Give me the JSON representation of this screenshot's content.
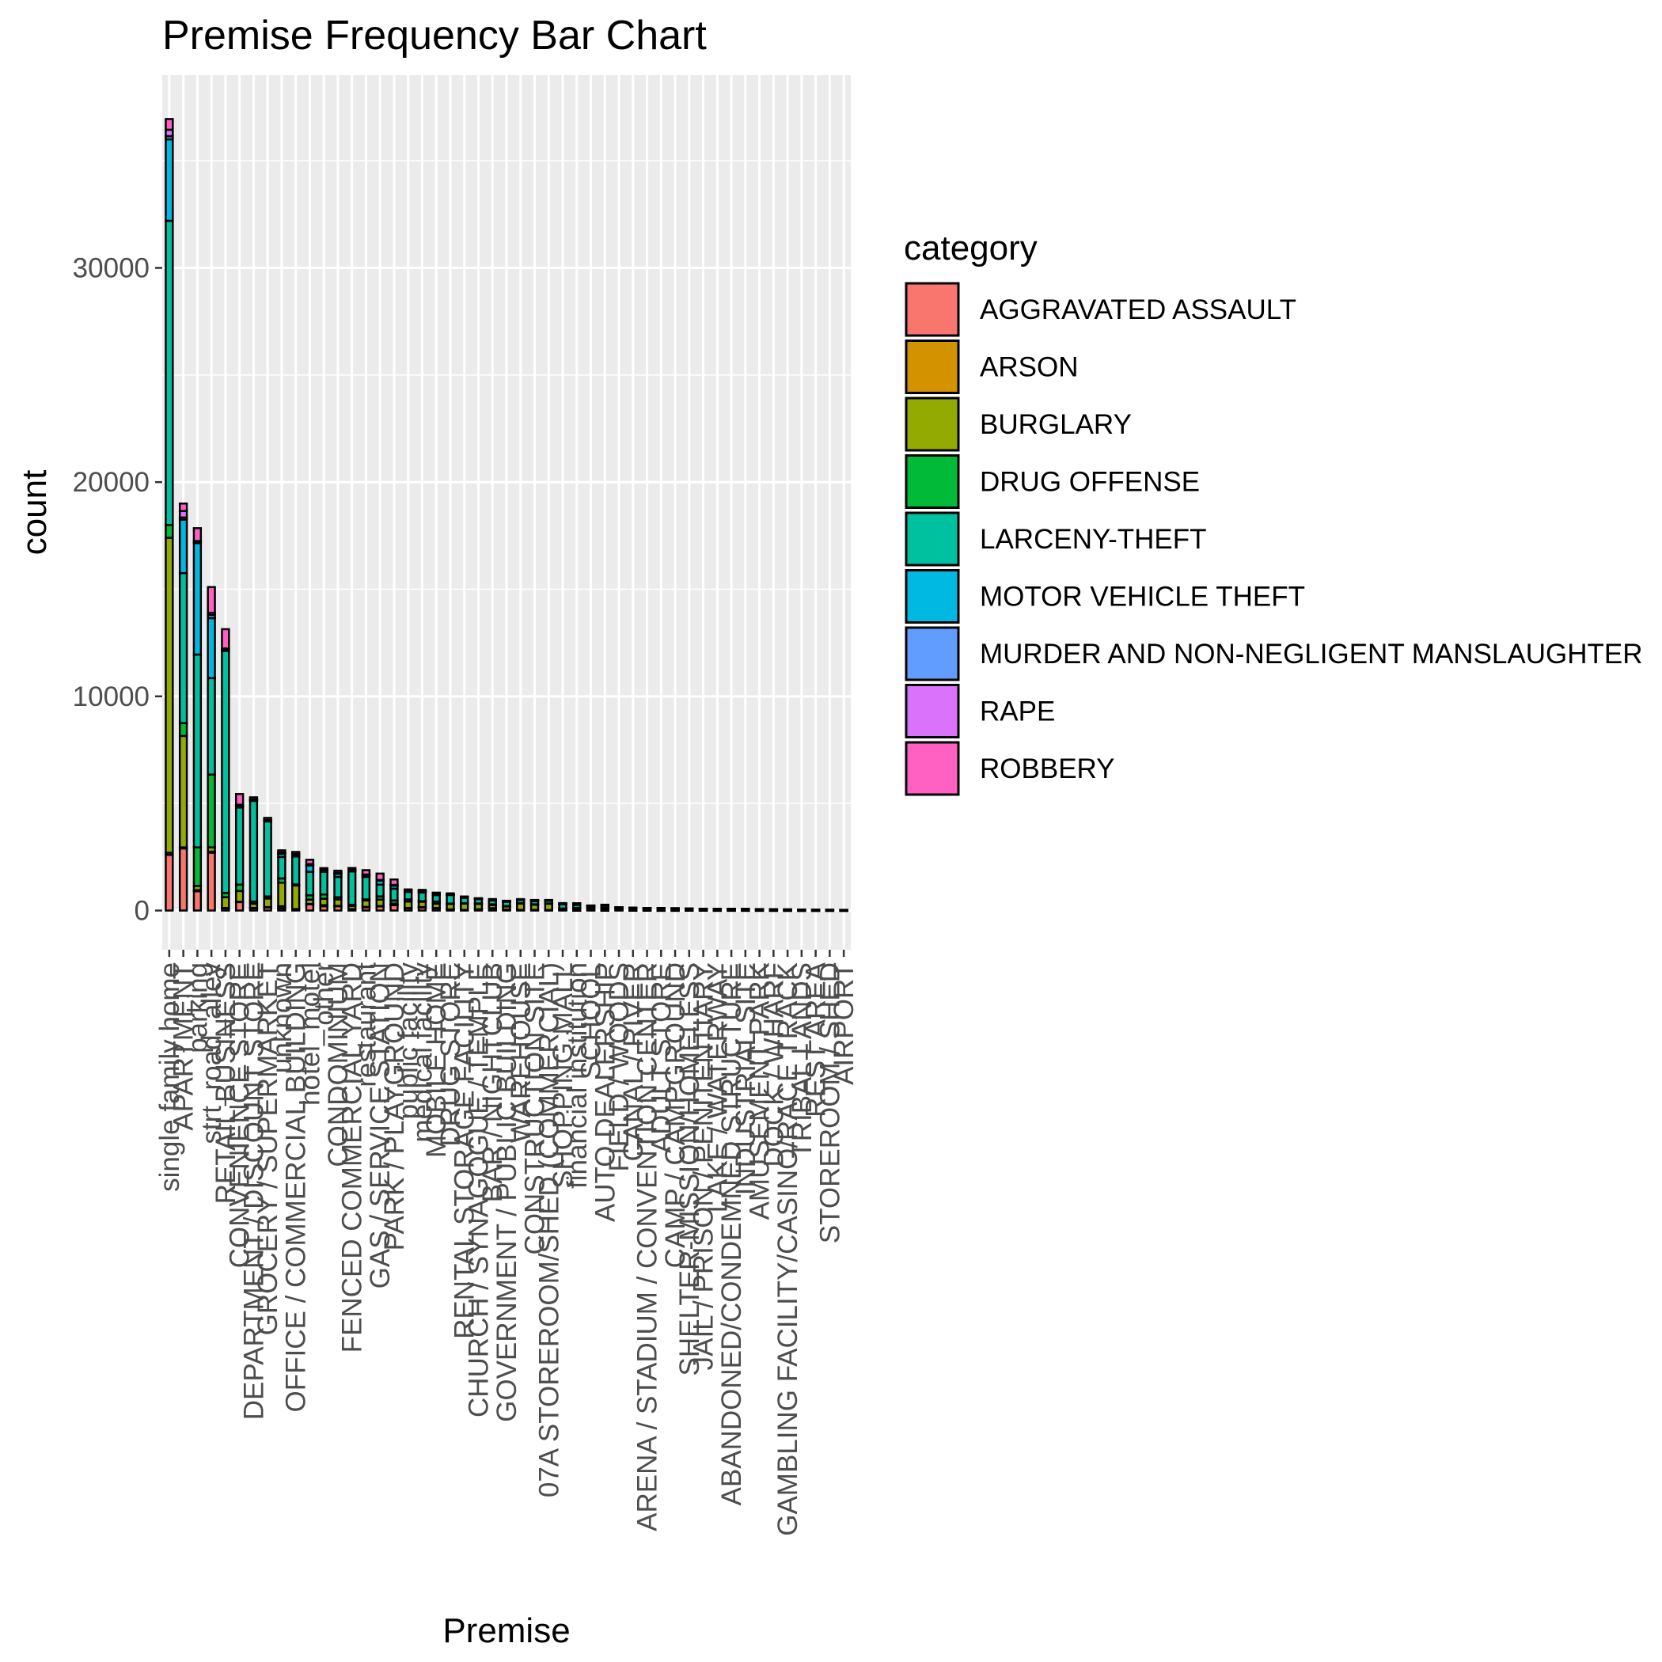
{
  "chart_data": {
    "type": "bar",
    "stacked": true,
    "title": "Premise Frequency Bar Chart",
    "xlabel": "Premise",
    "ylabel": "count",
    "ylim": [
      0,
      38000
    ],
    "yticks": [
      0,
      10000,
      20000,
      30000
    ],
    "grid": true,
    "legend": {
      "title": "category",
      "placement": "right",
      "entries": [
        {
          "name": "AGGRAVATED ASSAULT",
          "color": "#F8766D"
        },
        {
          "name": "ARSON",
          "color": "#D39200"
        },
        {
          "name": "BURGLARY",
          "color": "#93AA00"
        },
        {
          "name": "DRUG OFFENSE",
          "color": "#00BA38"
        },
        {
          "name": "LARCENY-THEFT",
          "color": "#00C19F"
        },
        {
          "name": "MOTOR VEHICLE THEFT",
          "color": "#00B9E3"
        },
        {
          "name": "MURDER AND NON-NEGLIGENT MANSLAUGHTER",
          "color": "#619CFF"
        },
        {
          "name": "RAPE",
          "color": "#DB72FB"
        },
        {
          "name": "ROBBERY",
          "color": "#FF61C3"
        }
      ]
    },
    "categories": [
      "single family home",
      "APARTMENT",
      "parking",
      "strt_road_alley",
      "RETAIL BUSINESS",
      "CONVENIENCE STORE",
      "DEPARTMENT / DISCOUNT STORE",
      "GROCERY / SUPERMARKET",
      "unknown",
      "OFFICE / COMMERCIAL BUILDING",
      "hotel_motel",
      "other",
      "CONDOMINIUM",
      "FENCED COMMERCIAL YARD",
      "restaurant",
      "GAS / SERVICE STATION",
      "PARK / PLAYGROUND",
      "public facility",
      "medical facility",
      "MOBILE HOME",
      "DRUG STORE",
      "RENTAL STORAGE FACILITY",
      "CHURCH / SYNAGOGUE / TEMPLE",
      "BAR / NIGHTCLUB",
      "GOVERNMENT / PUBLIC BUILDING",
      "WAREHOUSE",
      "CONSTRUCTION SITE",
      "07A STOREROOM/SHED (COMMERCIAL)",
      "SHOPPING MALL",
      "financial institution",
      "SCHOOL",
      "AUTO DEALERSHIP",
      "FIELD / WOODS",
      "CANAL / RIVER",
      "ARENA / STADIUM / CONVENTION CENTER",
      "ADULT STORE",
      "CAMP / CAMPGROUND",
      "SHELTER-MISSION/HOMELESS",
      "JAIL / PRISON / PENITENTIARY",
      "LAKE / WATERWAY",
      "ABANDONED/CONDEMNED STRUCTURE",
      "INDUSTRIAL SITE",
      "AMUSEMENT PARK",
      "DOCK / WHARF",
      "GAMBLING FACILITY/CASINO/RACE TRACK",
      "TRIBAL LANDS",
      "REST AREA",
      "STOREROOM / SHED",
      "AIRPORT"
    ],
    "series": [
      {
        "name": "AGGRAVATED ASSAULT",
        "values": [
          2600,
          2900,
          900,
          2700,
          100,
          400,
          100,
          150,
          100,
          50,
          300,
          200,
          200,
          50,
          150,
          200,
          250,
          100,
          150,
          100,
          50,
          20,
          50,
          100,
          30,
          20,
          20,
          20,
          30,
          10,
          20,
          10,
          20,
          10,
          10,
          5,
          5,
          10,
          10,
          5,
          5,
          5,
          5,
          3,
          3,
          2,
          2,
          2,
          2
        ]
      },
      {
        "name": "ARSON",
        "values": [
          100,
          50,
          50,
          50,
          20,
          10,
          20,
          10,
          100,
          20,
          10,
          50,
          20,
          20,
          20,
          10,
          20,
          20,
          10,
          20,
          5,
          10,
          10,
          10,
          10,
          10,
          10,
          5,
          5,
          5,
          5,
          5,
          5,
          5,
          5,
          3,
          3,
          2,
          2,
          2,
          5,
          3,
          2,
          2,
          1,
          1,
          1,
          1,
          1
        ]
      },
      {
        "name": "BURGLARY",
        "values": [
          14700,
          5200,
          200,
          200,
          500,
          500,
          200,
          400,
          1100,
          1100,
          200,
          300,
          300,
          150,
          300,
          300,
          50,
          300,
          250,
          200,
          250,
          300,
          250,
          150,
          150,
          300,
          250,
          300,
          50,
          100,
          100,
          100,
          30,
          20,
          30,
          30,
          30,
          20,
          10,
          10,
          30,
          20,
          10,
          10,
          10,
          5,
          5,
          10,
          5
        ]
      },
      {
        "name": "DRUG OFFENSE",
        "values": [
          600,
          600,
          1800,
          3400,
          200,
          300,
          100,
          100,
          200,
          50,
          200,
          200,
          100,
          50,
          50,
          150,
          150,
          100,
          30,
          100,
          20,
          10,
          20,
          30,
          20,
          10,
          10,
          5,
          10,
          5,
          10,
          5,
          20,
          10,
          5,
          5,
          5,
          10,
          20,
          5,
          5,
          5,
          5,
          5,
          5,
          3,
          3,
          2,
          2
        ]
      },
      {
        "name": "LARCENY-THEFT",
        "values": [
          14200,
          7000,
          9000,
          4500,
          11300,
          3600,
          4700,
          3500,
          1000,
          1300,
          1100,
          1050,
          950,
          1550,
          1050,
          550,
          550,
          350,
          400,
          300,
          400,
          250,
          200,
          180,
          200,
          150,
          150,
          130,
          200,
          150,
          80,
          100,
          60,
          60,
          50,
          60,
          50,
          40,
          30,
          40,
          20,
          30,
          30,
          30,
          25,
          25,
          20,
          15,
          15
        ]
      },
      {
        "name": "MOTOR VEHICLE THEFT",
        "values": [
          3800,
          2500,
          5200,
          2800,
          100,
          100,
          50,
          50,
          150,
          100,
          300,
          100,
          150,
          100,
          100,
          200,
          150,
          50,
          50,
          50,
          20,
          50,
          20,
          20,
          20,
          30,
          30,
          20,
          20,
          10,
          10,
          40,
          10,
          20,
          10,
          5,
          10,
          5,
          5,
          10,
          10,
          10,
          10,
          5,
          5,
          5,
          5,
          3,
          3
        ]
      },
      {
        "name": "MURDER AND NON-NEGLIGENT MANSLAUGHTER",
        "values": [
          150,
          100,
          50,
          150,
          5,
          10,
          5,
          5,
          10,
          5,
          10,
          10,
          10,
          5,
          5,
          5,
          10,
          5,
          5,
          5,
          2,
          2,
          2,
          5,
          2,
          1,
          1,
          1,
          1,
          1,
          1,
          1,
          1,
          1,
          1,
          1,
          1,
          1,
          1,
          1,
          1,
          1,
          1,
          1,
          1,
          1,
          0,
          0,
          0
        ]
      },
      {
        "name": "RAPE",
        "values": [
          300,
          300,
          50,
          100,
          10,
          20,
          10,
          10,
          50,
          10,
          50,
          20,
          30,
          10,
          10,
          10,
          20,
          10,
          20,
          10,
          5,
          2,
          5,
          10,
          5,
          2,
          2,
          2,
          2,
          2,
          2,
          1,
          1,
          2,
          1,
          1,
          1,
          1,
          2,
          1,
          1,
          1,
          1,
          1,
          1,
          1,
          1,
          1,
          1
        ]
      },
      {
        "name": "ROBBERY",
        "values": [
          500,
          350,
          600,
          1200,
          900,
          500,
          100,
          100,
          100,
          100,
          200,
          50,
          100,
          50,
          200,
          300,
          250,
          50,
          50,
          50,
          50,
          10,
          20,
          30,
          20,
          10,
          20,
          10,
          30,
          60,
          10,
          10,
          10,
          10,
          5,
          10,
          5,
          10,
          5,
          5,
          5,
          5,
          5,
          5,
          5,
          5,
          5,
          3,
          3
        ]
      }
    ]
  }
}
